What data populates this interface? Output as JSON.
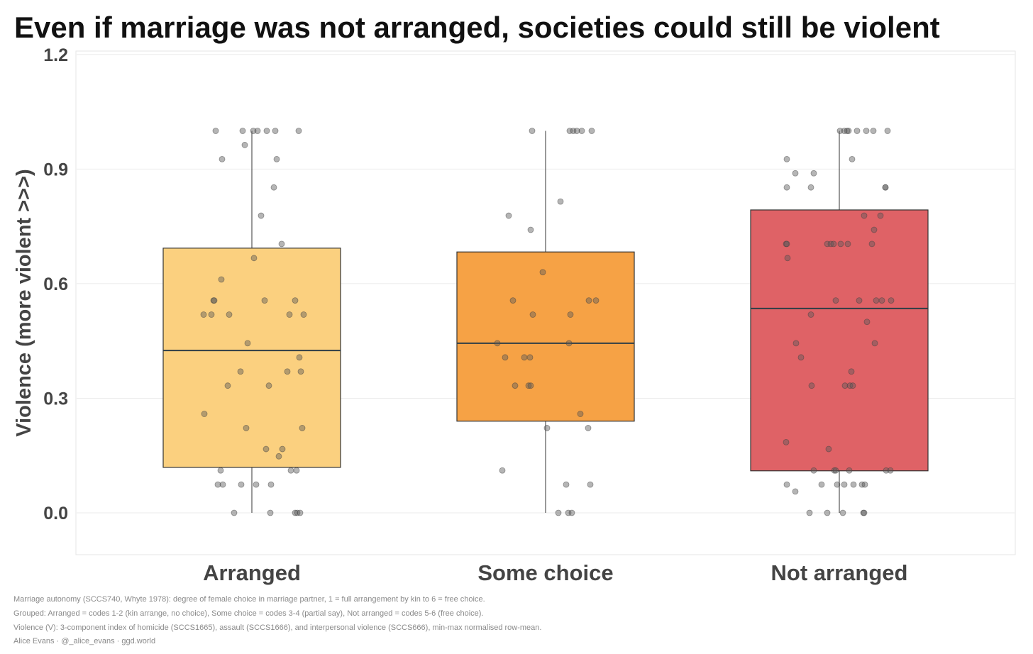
{
  "chart_data": {
    "type": "box",
    "title": "Even if marriage was not arranged, societies could still be violent",
    "xlabel": "",
    "ylabel": "Violence (more violent >>>)",
    "ylim": [
      -0.11,
      1.21
    ],
    "yticks": [
      "0.0",
      "0.3",
      "0.6",
      "0.9",
      "1.2"
    ],
    "ytick_values": [
      0,
      0.3,
      0.6,
      0.9,
      1.2
    ],
    "grid": true,
    "categories": [
      "Arranged",
      "Some choice",
      "Not arranged"
    ],
    "colors": [
      "#FBD07F",
      "#F6A245",
      "#DF6266"
    ],
    "boxes": [
      {
        "name": "Arranged",
        "min": 0,
        "q1": 0.119,
        "median": 0.425,
        "q3": 0.693,
        "max": 1.0
      },
      {
        "name": "Some choice",
        "min": 0,
        "q1": 0.24,
        "median": 0.444,
        "q3": 0.683,
        "max": 1.0
      },
      {
        "name": "Not arranged",
        "min": 0,
        "q1": 0.11,
        "median": 0.535,
        "q3": 0.793,
        "max": 1.0
      }
    ],
    "points": [
      [
        1,
        1,
        1,
        1,
        1,
        1,
        1,
        0.963,
        0.926,
        0.926,
        0.852,
        0.778,
        0.704,
        0.667,
        0.611,
        0.556,
        0.556,
        0.556,
        0.556,
        0.519,
        0.519,
        0.519,
        0.519,
        0.519,
        0.444,
        0.407,
        0.37,
        0.37,
        0.37,
        0.333,
        0.333,
        0.259,
        0.222,
        0.222,
        0.167,
        0.167,
        0.148,
        0.111,
        0.111,
        0.111,
        0.074,
        0.074,
        0.074,
        0.074,
        0.074,
        0,
        0,
        0,
        0,
        0
      ],
      [
        1,
        1,
        1,
        1,
        1,
        1,
        0.815,
        0.778,
        0.741,
        0.63,
        0.556,
        0.556,
        0.556,
        0.519,
        0.519,
        0.444,
        0.444,
        0.407,
        0.407,
        0.407,
        0.333,
        0.333,
        0.333,
        0.259,
        0.222,
        0.222,
        0.111,
        0.074,
        0.074,
        0,
        0,
        0
      ],
      [
        1,
        1,
        1,
        1,
        1,
        1,
        1,
        1,
        0.926,
        0.926,
        0.889,
        0.889,
        0.852,
        0.852,
        0.852,
        0.852,
        0.778,
        0.778,
        0.741,
        0.704,
        0.704,
        0.704,
        0.704,
        0.704,
        0.704,
        0.704,
        0.704,
        0.667,
        0.556,
        0.556,
        0.556,
        0.556,
        0.556,
        0.519,
        0.5,
        0.444,
        0.444,
        0.407,
        0.37,
        0.333,
        0.333,
        0.333,
        0.333,
        0.185,
        0.167,
        0.111,
        0.111,
        0.111,
        0.111,
        0.111,
        0.111,
        0.074,
        0.056,
        0.074,
        0.074,
        0.074,
        0.074,
        0.074,
        0.074,
        0,
        0,
        0,
        0,
        0
      ]
    ],
    "notes": [
      "Marriage autonomy (SCCS740, Whyte 1978): degree of female choice in marriage partner, 1 = full arrangement by kin to 6 = free choice.",
      "Grouped: Arranged = codes 1-2 (kin arrange, no choice), Some choice = codes 3-4 (partial say), Not arranged = codes 5-6 (free choice).",
      "Violence (V): 3-component index of homicide (SCCS1665), assault (SCCS1666), and interpersonal violence (SCCS666), min-max normalised row-mean.",
      "Alice Evans · @_alice_evans · ggd.world"
    ]
  }
}
